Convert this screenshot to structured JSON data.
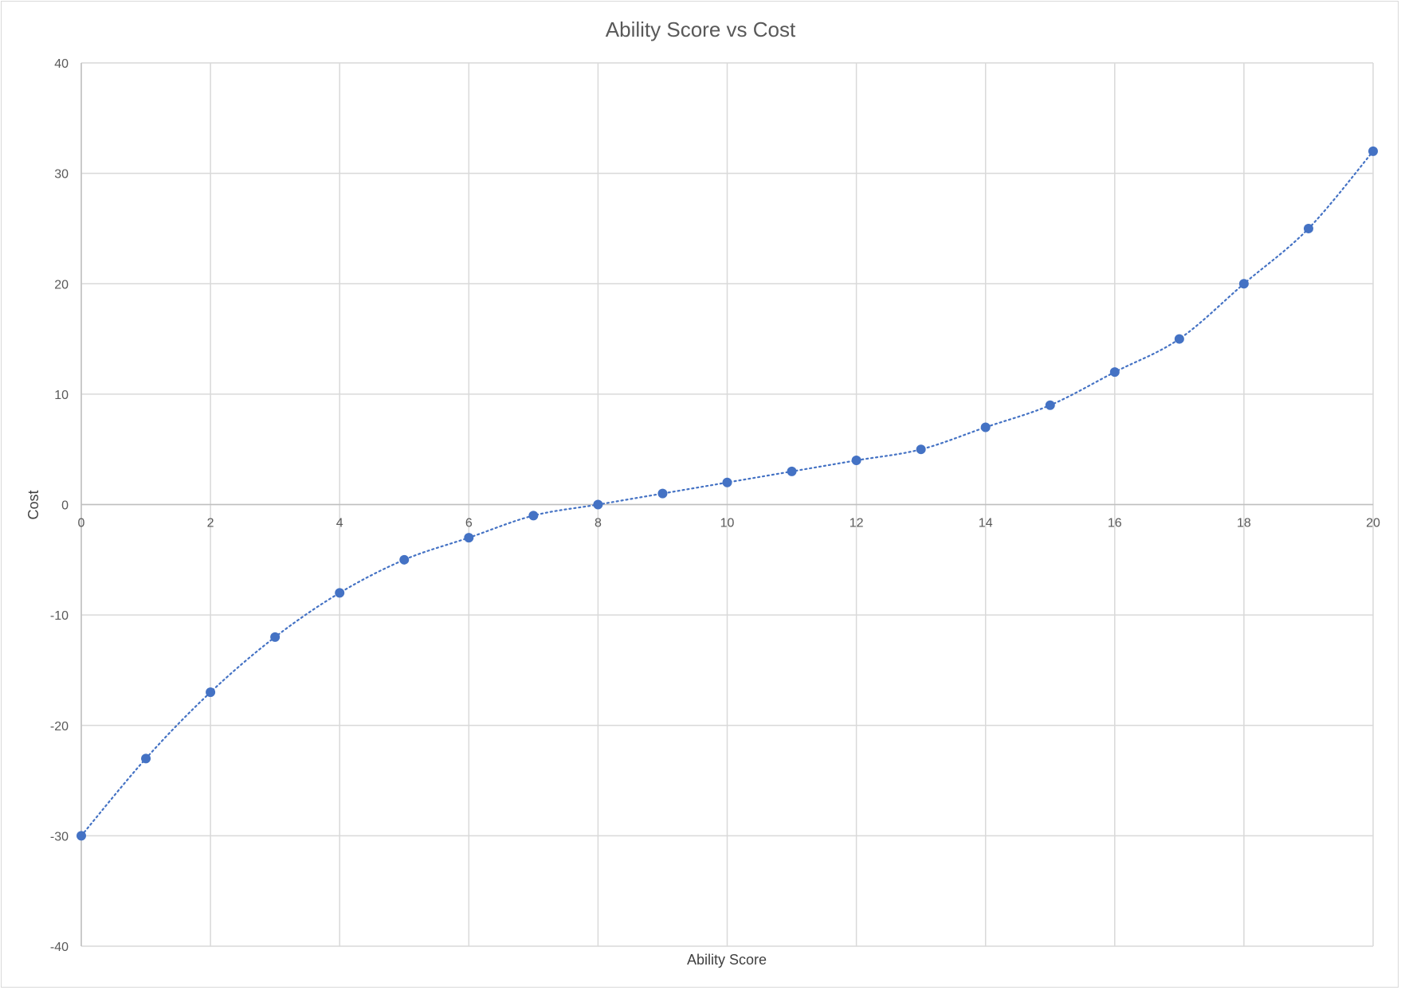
{
  "chart_data": {
    "type": "scatter",
    "title": "Ability Score vs Cost",
    "xlabel": "Ability Score",
    "ylabel": "Cost",
    "xlim": [
      0,
      20
    ],
    "ylim": [
      -40,
      40
    ],
    "x_ticks": [
      0,
      2,
      4,
      6,
      8,
      10,
      12,
      14,
      16,
      18,
      20
    ],
    "y_ticks": [
      40,
      30,
      20,
      10,
      0,
      -10,
      -20,
      -30,
      -40
    ],
    "grid": true,
    "legend": "none",
    "trendline": "dotted smooth",
    "colors": {
      "series": "#4472c4",
      "grid": "#d9d9d9",
      "text": "#595959"
    },
    "series": [
      {
        "x": [
          0,
          1,
          2,
          3,
          4,
          5,
          6,
          7,
          8,
          9,
          10,
          11,
          12,
          13,
          14,
          15,
          16,
          17,
          18,
          19,
          20
        ],
        "values": [
          -30,
          -23,
          -17,
          -12,
          -8,
          -5,
          -3,
          -1,
          0,
          1,
          2,
          3,
          4,
          5,
          7,
          9,
          12,
          15,
          20,
          25,
          32
        ]
      }
    ]
  }
}
